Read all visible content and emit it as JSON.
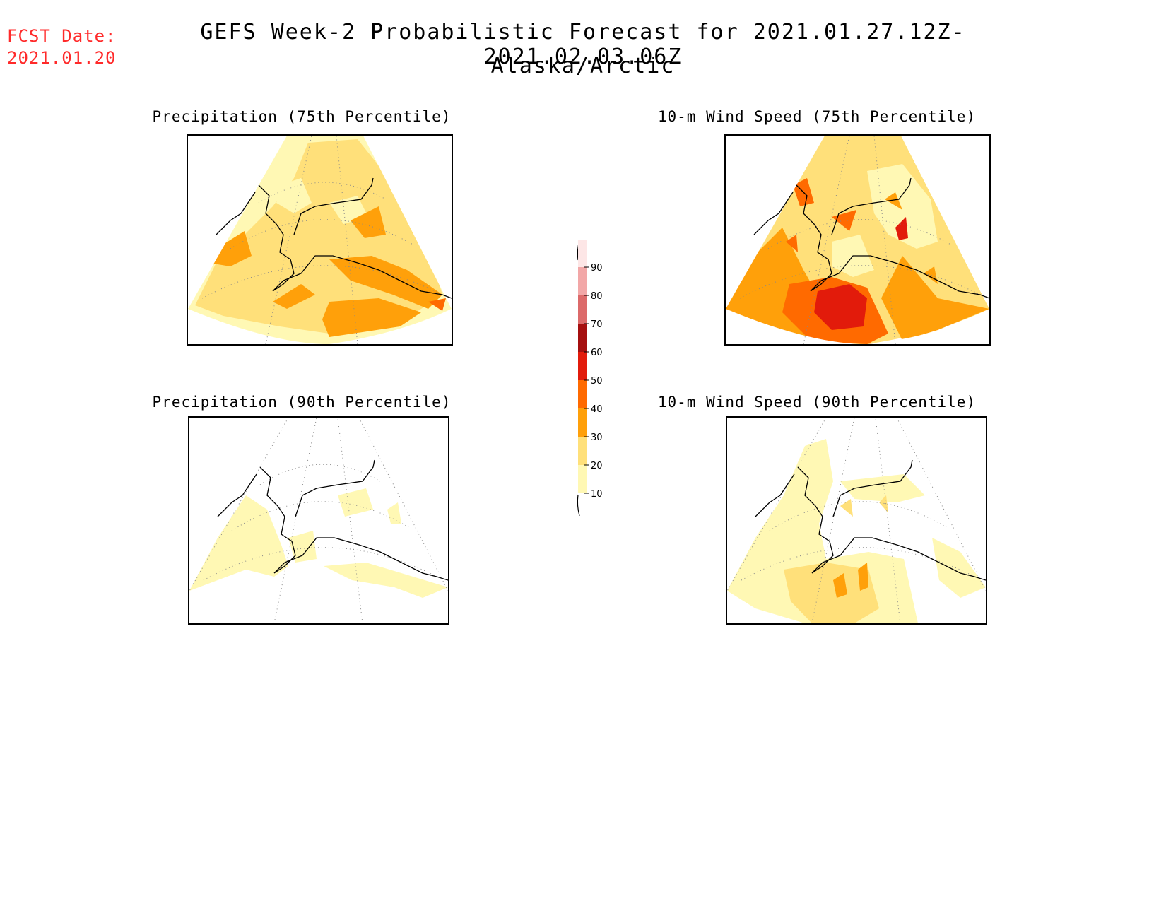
{
  "header": {
    "fcst_label": "FCST Date:",
    "fcst_date": "2021.01.20",
    "title": "GEFS Week-2 Probabilistic Forecast for 2021.01.27.12Z-2021.02.03.06Z",
    "region": "Alaska/Arctic"
  },
  "panels": {
    "precip75": {
      "title": "Precipitation (75th Percentile)"
    },
    "wind75": {
      "title": "10-m Wind Speed (75th Percentile)"
    },
    "precip90": {
      "title": "Precipitation (90th Percentile)"
    },
    "wind90": {
      "title": "10-m Wind Speed (90th Percentile)"
    }
  },
  "colorbar": {
    "levels": [
      "90",
      "80",
      "70",
      "60",
      "50",
      "40",
      "30",
      "20",
      "10"
    ],
    "colors": {
      "gt90": "#fde6e6",
      "80-90": "#f2a7a7",
      "70-80": "#dc6a6a",
      "60-70": "#a50f0f",
      "50-60": "#e21b0b",
      "40-50": "#ff6a00",
      "30-40": "#ffa00a",
      "20-30": "#ffe07a",
      "10-20": "#fff8b4"
    }
  }
}
